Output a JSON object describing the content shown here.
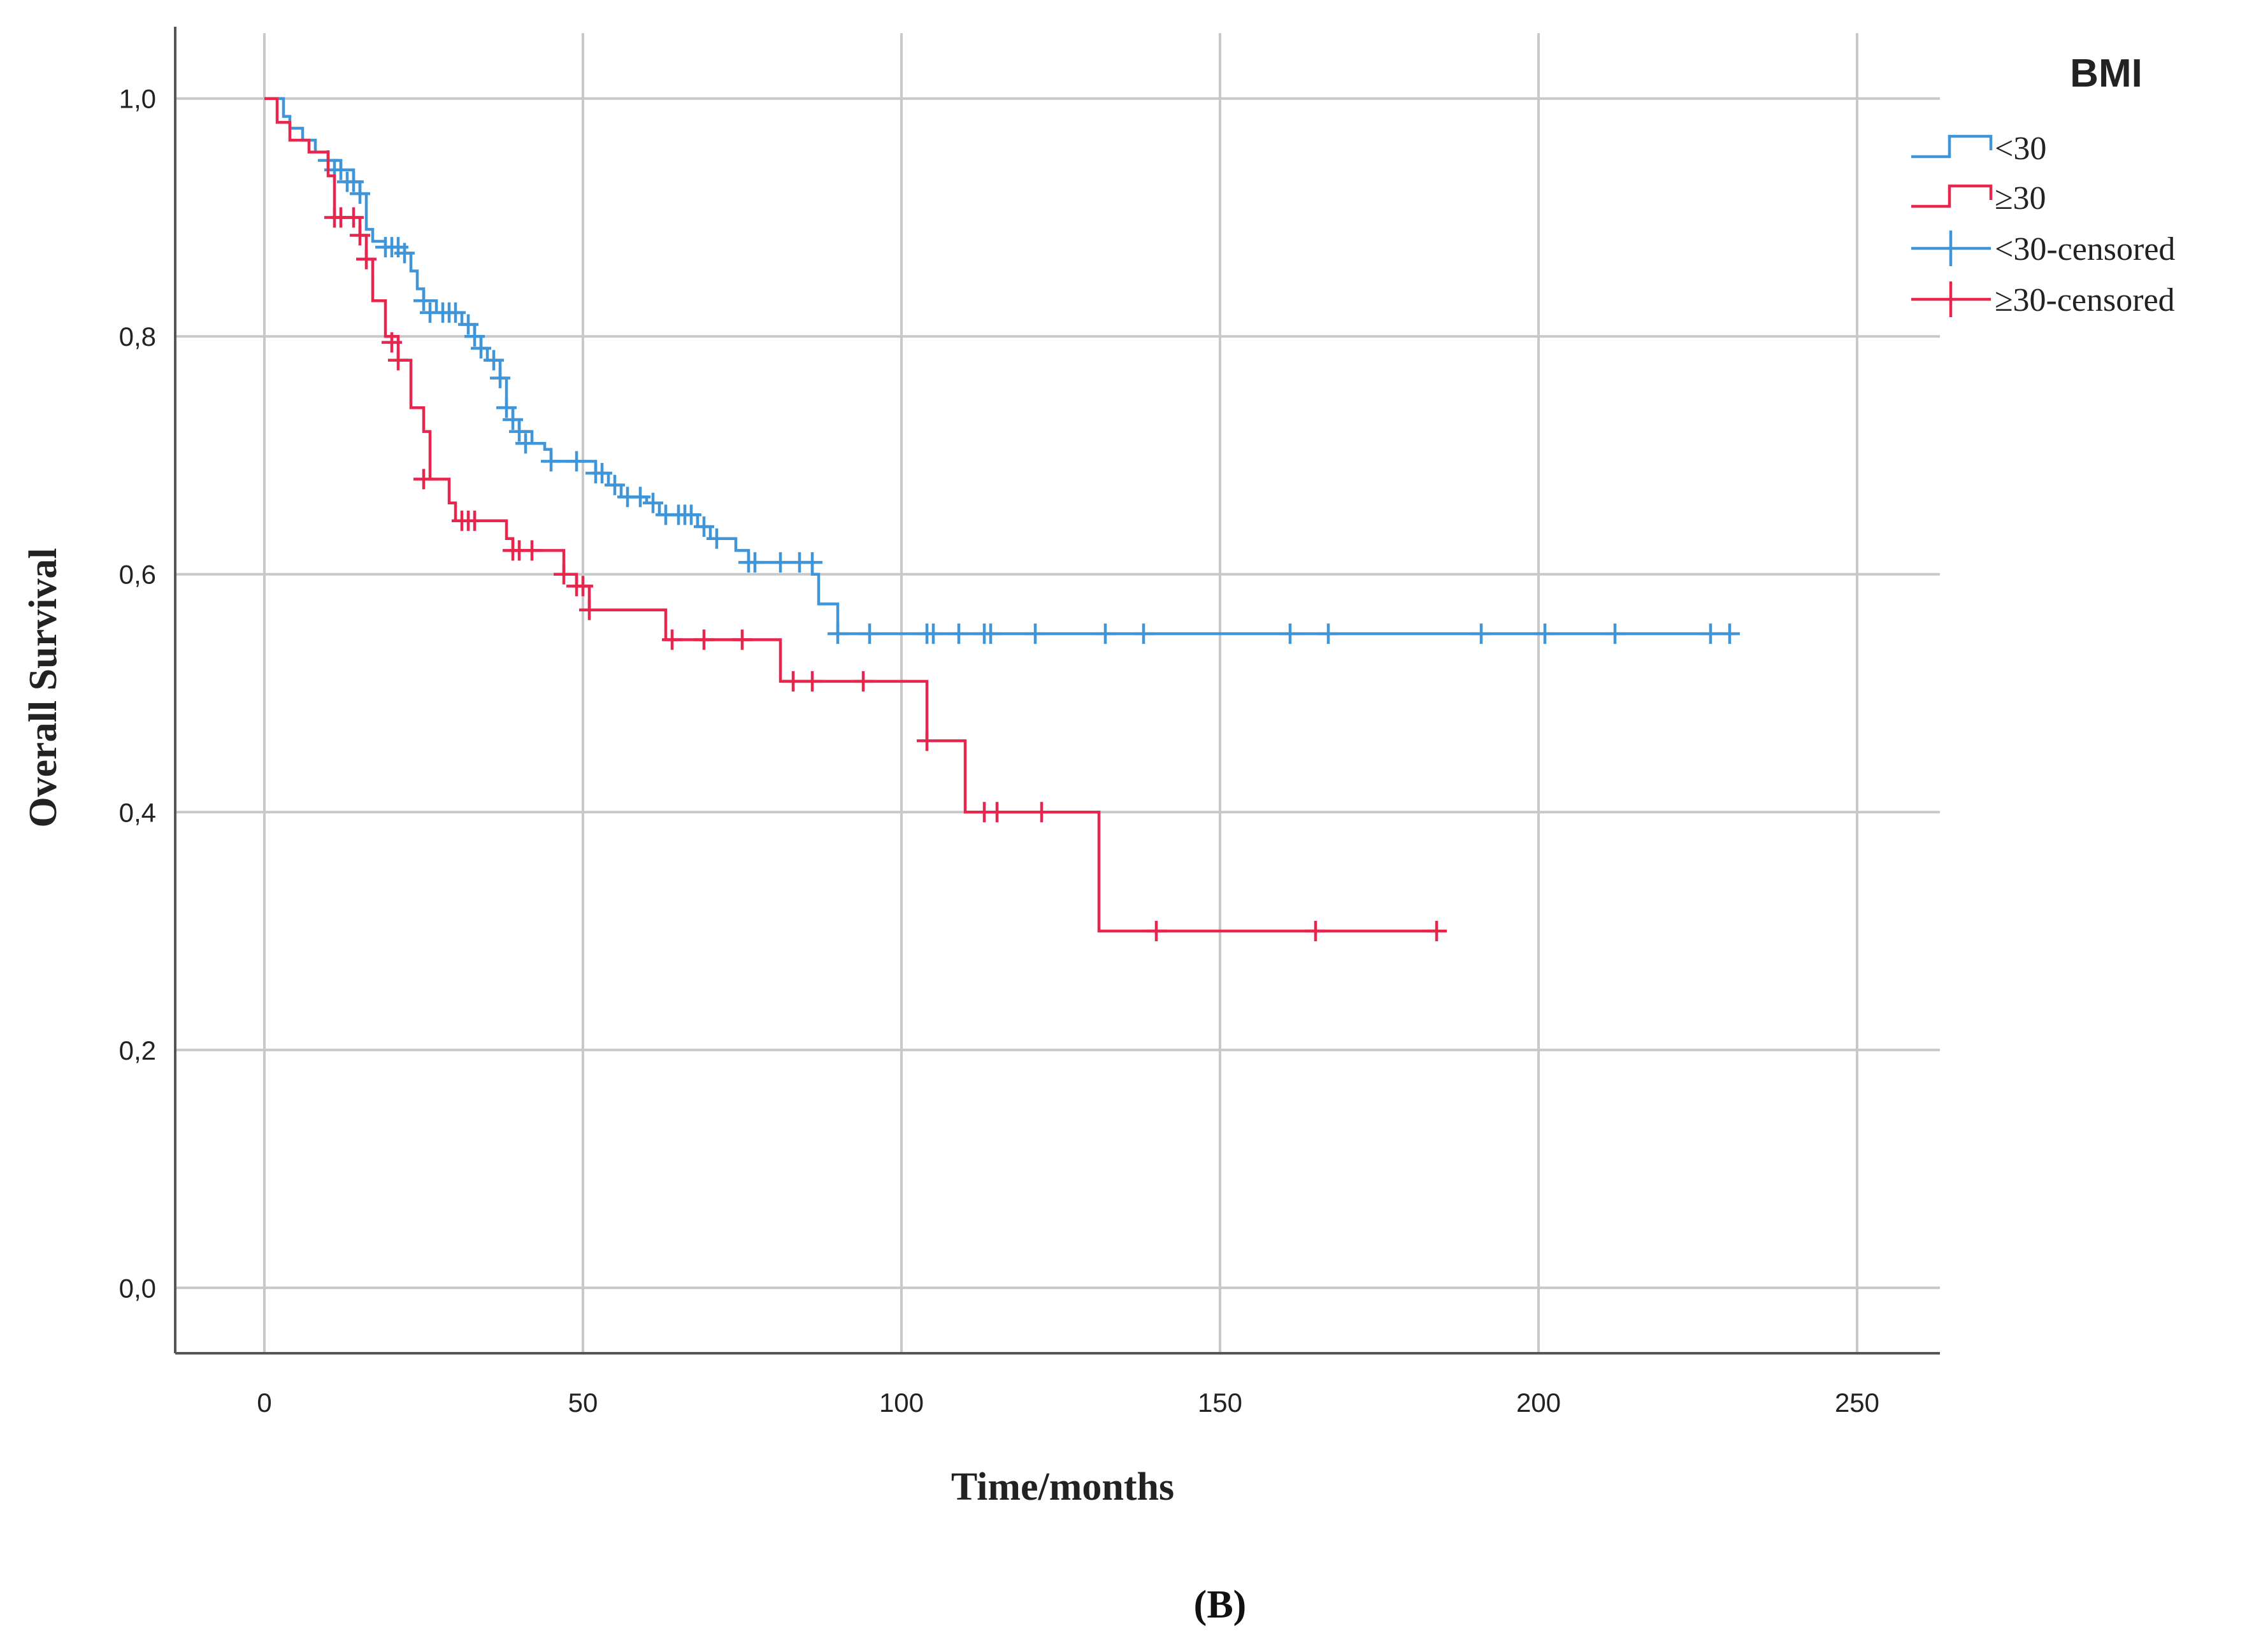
{
  "chart_data": {
    "type": "line",
    "subtype": "kaplan-meier",
    "xlabel": "Time/months",
    "ylabel": "Overall Survival",
    "xlim": [
      -14,
      263
    ],
    "ylim": [
      -0.055,
      1.055
    ],
    "x_ticks": [
      0,
      50,
      100,
      150,
      200,
      250
    ],
    "y_ticks": [
      0.0,
      0.2,
      0.4,
      0.6,
      0.8,
      1.0
    ],
    "x_tick_labels": [
      "0",
      "50",
      "100",
      "150",
      "200",
      "250"
    ],
    "y_tick_labels": [
      "0,0",
      "0,2",
      "0,4",
      "0,6",
      "0,8",
      "1,0"
    ],
    "grid": true,
    "legend_title": "BMI",
    "legend_position": "top-right",
    "panel_label": "(B)",
    "legend": [
      {
        "label": "<30",
        "kind": "step",
        "color": "#3f95d8"
      },
      {
        "label": "≥30",
        "kind": "step",
        "color": "#e8264d"
      },
      {
        "label": "<30-censored",
        "kind": "cross",
        "color": "#3f95d8"
      },
      {
        "label": "≥30-censored",
        "kind": "cross",
        "color": "#e8264d"
      }
    ],
    "series": [
      {
        "name": "<30",
        "color": "#3f95d8",
        "steps": [
          [
            0,
            1.0
          ],
          [
            3,
            0.985
          ],
          [
            4,
            0.975
          ],
          [
            6,
            0.965
          ],
          [
            8,
            0.955
          ],
          [
            10,
            0.948
          ],
          [
            12,
            0.94
          ],
          [
            14,
            0.93
          ],
          [
            15,
            0.92
          ],
          [
            16,
            0.89
          ],
          [
            17,
            0.88
          ],
          [
            19,
            0.875
          ],
          [
            22,
            0.87
          ],
          [
            23,
            0.855
          ],
          [
            24,
            0.84
          ],
          [
            25,
            0.83
          ],
          [
            27,
            0.82
          ],
          [
            31,
            0.81
          ],
          [
            33,
            0.8
          ],
          [
            34,
            0.79
          ],
          [
            35,
            0.78
          ],
          [
            37,
            0.765
          ],
          [
            38,
            0.74
          ],
          [
            39,
            0.73
          ],
          [
            40,
            0.72
          ],
          [
            42,
            0.71
          ],
          [
            44,
            0.705
          ],
          [
            45,
            0.695
          ],
          [
            52,
            0.685
          ],
          [
            54,
            0.675
          ],
          [
            56,
            0.665
          ],
          [
            60,
            0.66
          ],
          [
            62,
            0.65
          ],
          [
            68,
            0.64
          ],
          [
            70,
            0.63
          ],
          [
            74,
            0.62
          ],
          [
            76,
            0.61
          ],
          [
            86,
            0.6
          ],
          [
            87,
            0.575
          ],
          [
            90,
            0.55
          ],
          [
            231,
            0.55
          ]
        ],
        "censored": [
          [
            10,
            0.948
          ],
          [
            11,
            0.94
          ],
          [
            12,
            0.94
          ],
          [
            13,
            0.93
          ],
          [
            14,
            0.93
          ],
          [
            15,
            0.92
          ],
          [
            19,
            0.875
          ],
          [
            20,
            0.875
          ],
          [
            21,
            0.875
          ],
          [
            22,
            0.87
          ],
          [
            25,
            0.83
          ],
          [
            26,
            0.82
          ],
          [
            28,
            0.82
          ],
          [
            29,
            0.82
          ],
          [
            30,
            0.82
          ],
          [
            32,
            0.81
          ],
          [
            33,
            0.8
          ],
          [
            34,
            0.79
          ],
          [
            36,
            0.78
          ],
          [
            37,
            0.765
          ],
          [
            38,
            0.74
          ],
          [
            39,
            0.73
          ],
          [
            40,
            0.72
          ],
          [
            41,
            0.71
          ],
          [
            45,
            0.695
          ],
          [
            49,
            0.695
          ],
          [
            52,
            0.685
          ],
          [
            53,
            0.685
          ],
          [
            55,
            0.675
          ],
          [
            57,
            0.665
          ],
          [
            59,
            0.665
          ],
          [
            61,
            0.66
          ],
          [
            63,
            0.65
          ],
          [
            65,
            0.65
          ],
          [
            66,
            0.65
          ],
          [
            67,
            0.65
          ],
          [
            69,
            0.64
          ],
          [
            71,
            0.63
          ],
          [
            76,
            0.61
          ],
          [
            77,
            0.61
          ],
          [
            81,
            0.61
          ],
          [
            84,
            0.61
          ],
          [
            86,
            0.61
          ],
          [
            90,
            0.55
          ],
          [
            95,
            0.55
          ],
          [
            104,
            0.55
          ],
          [
            105,
            0.55
          ],
          [
            109,
            0.55
          ],
          [
            113,
            0.55
          ],
          [
            114,
            0.55
          ],
          [
            121,
            0.55
          ],
          [
            132,
            0.55
          ],
          [
            138,
            0.55
          ],
          [
            161,
            0.55
          ],
          [
            167,
            0.55
          ],
          [
            191,
            0.55
          ],
          [
            201,
            0.55
          ],
          [
            212,
            0.55
          ],
          [
            227,
            0.55
          ],
          [
            230,
            0.55
          ]
        ]
      },
      {
        "name": "≥30",
        "color": "#e8264d",
        "steps": [
          [
            0,
            1.0
          ],
          [
            2,
            0.98
          ],
          [
            4,
            0.965
          ],
          [
            7,
            0.955
          ],
          [
            10,
            0.935
          ],
          [
            11,
            0.9
          ],
          [
            15,
            0.885
          ],
          [
            16,
            0.865
          ],
          [
            17,
            0.83
          ],
          [
            19,
            0.8
          ],
          [
            21,
            0.78
          ],
          [
            23,
            0.74
          ],
          [
            25,
            0.72
          ],
          [
            26,
            0.68
          ],
          [
            29,
            0.66
          ],
          [
            30,
            0.645
          ],
          [
            38,
            0.63
          ],
          [
            39,
            0.62
          ],
          [
            47,
            0.6
          ],
          [
            49,
            0.59
          ],
          [
            51,
            0.57
          ],
          [
            63,
            0.545
          ],
          [
            81,
            0.51
          ],
          [
            104,
            0.46
          ],
          [
            110,
            0.4
          ],
          [
            131,
            0.3
          ],
          [
            184,
            0.3
          ]
        ],
        "censored": [
          [
            11,
            0.9
          ],
          [
            12,
            0.9
          ],
          [
            14,
            0.9
          ],
          [
            15,
            0.885
          ],
          [
            16,
            0.865
          ],
          [
            20,
            0.795
          ],
          [
            21,
            0.78
          ],
          [
            25,
            0.68
          ],
          [
            31,
            0.645
          ],
          [
            32,
            0.645
          ],
          [
            33,
            0.645
          ],
          [
            39,
            0.62
          ],
          [
            40,
            0.62
          ],
          [
            42,
            0.62
          ],
          [
            47,
            0.6
          ],
          [
            49,
            0.59
          ],
          [
            50,
            0.59
          ],
          [
            51,
            0.57
          ],
          [
            64,
            0.545
          ],
          [
            69,
            0.545
          ],
          [
            75,
            0.545
          ],
          [
            83,
            0.51
          ],
          [
            86,
            0.51
          ],
          [
            94,
            0.51
          ],
          [
            104,
            0.46
          ],
          [
            113,
            0.4
          ],
          [
            115,
            0.4
          ],
          [
            122,
            0.4
          ],
          [
            140,
            0.3
          ],
          [
            165,
            0.3
          ],
          [
            184,
            0.3
          ]
        ]
      }
    ]
  }
}
